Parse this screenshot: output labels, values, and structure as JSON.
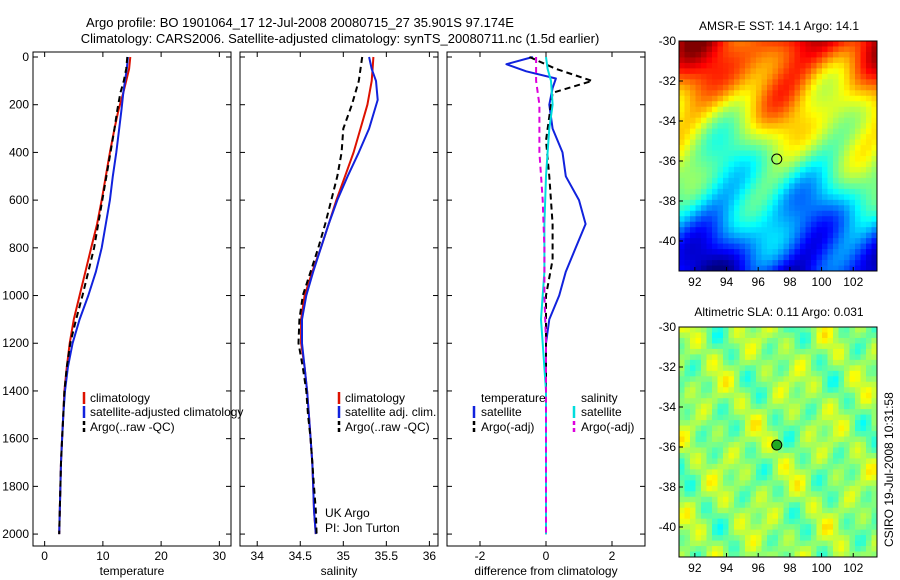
{
  "header": {
    "title_line1": "Argo profile: BO 1901064_17 12-Jul-2008 20080715_27 35.901S 97.174E",
    "title_line2": "Climatology: CARS2006. Satellite-adjusted climatology: synTS_20080711.nc (1.5d earlier)"
  },
  "credits": {
    "line1": "UK Argo",
    "line2": "PI: Jon Turton",
    "side": "CSIRO 19-Jul-2008 10:31:58"
  },
  "colors": {
    "climatology": "#dd1100",
    "satellite": "#1122dd",
    "argo": "#000000",
    "salinity_satellite": "#00dddd",
    "salinity_argo": "#dd00dd"
  },
  "chart_data": [
    {
      "type": "line",
      "id": "temperature",
      "xlabel": "temperature",
      "ylabel": "",
      "xlim": [
        -2,
        32
      ],
      "ylim": [
        0,
        2050
      ],
      "y_inverted": true,
      "xticks": [
        0,
        10,
        20,
        30
      ],
      "yticks": [
        0,
        200,
        400,
        600,
        800,
        1000,
        1200,
        1400,
        1600,
        1800,
        2000
      ],
      "legend": {
        "position": "bottom-right",
        "entries": [
          "climatology",
          "satellite-adjusted climatology",
          "Argo(..raw -QC)"
        ]
      },
      "series": [
        {
          "name": "climatology",
          "color": "#dd1100",
          "dash": false,
          "points": [
            [
              14.7,
              0
            ],
            [
              14.5,
              50
            ],
            [
              14.0,
              100
            ],
            [
              13.5,
              150
            ],
            [
              12.7,
              220
            ],
            [
              12.0,
              300
            ],
            [
              11.2,
              400
            ],
            [
              10.5,
              500
            ],
            [
              9.8,
              600
            ],
            [
              9.0,
              700
            ],
            [
              8.0,
              800
            ],
            [
              7.0,
              900
            ],
            [
              6.0,
              1000
            ],
            [
              5.0,
              1100
            ],
            [
              4.3,
              1200
            ],
            [
              3.8,
              1300
            ],
            [
              3.4,
              1400
            ],
            [
              3.2,
              1500
            ],
            [
              3.0,
              1600
            ],
            [
              2.8,
              1700
            ],
            [
              2.7,
              1800
            ],
            [
              2.6,
              1900
            ],
            [
              2.5,
              2000
            ]
          ]
        },
        {
          "name": "satellite-adjusted climatology",
          "color": "#1122dd",
          "dash": false,
          "points": [
            [
              14.3,
              0
            ],
            [
              14.1,
              50
            ],
            [
              13.8,
              100
            ],
            [
              13.5,
              150
            ],
            [
              13.2,
              220
            ],
            [
              12.8,
              300
            ],
            [
              12.3,
              400
            ],
            [
              11.7,
              500
            ],
            [
              11.2,
              600
            ],
            [
              10.5,
              700
            ],
            [
              9.8,
              800
            ],
            [
              8.8,
              900
            ],
            [
              7.5,
              1000
            ],
            [
              6.0,
              1100
            ],
            [
              4.8,
              1200
            ],
            [
              4.0,
              1300
            ],
            [
              3.5,
              1400
            ],
            [
              3.2,
              1500
            ],
            [
              3.0,
              1600
            ],
            [
              2.8,
              1700
            ],
            [
              2.7,
              1800
            ],
            [
              2.6,
              1900
            ],
            [
              2.5,
              2000
            ]
          ]
        },
        {
          "name": "Argo(..raw -QC)",
          "color": "#000000",
          "dash": true,
          "points": [
            [
              14.2,
              0
            ],
            [
              14.0,
              50
            ],
            [
              13.6,
              100
            ],
            [
              13.0,
              150
            ],
            [
              12.5,
              220
            ],
            [
              12.0,
              300
            ],
            [
              11.3,
              400
            ],
            [
              10.6,
              500
            ],
            [
              9.9,
              600
            ],
            [
              9.2,
              700
            ],
            [
              8.5,
              800
            ],
            [
              7.5,
              900
            ],
            [
              6.5,
              1000
            ],
            [
              5.4,
              1100
            ],
            [
              4.4,
              1200
            ],
            [
              3.8,
              1300
            ],
            [
              3.4,
              1400
            ],
            [
              3.2,
              1500
            ],
            [
              3.0,
              1600
            ],
            [
              2.8,
              1700
            ],
            [
              2.7,
              1800
            ],
            [
              2.6,
              1900
            ],
            [
              2.5,
              2000
            ]
          ]
        }
      ]
    },
    {
      "type": "line",
      "id": "salinity",
      "xlabel": "salinity",
      "ylabel": "",
      "xlim": [
        33.8,
        36.1
      ],
      "ylim": [
        0,
        2050
      ],
      "y_inverted": true,
      "xticks": [
        34,
        34.5,
        35,
        35.5,
        36
      ],
      "yticks": [
        0,
        200,
        400,
        600,
        800,
        1000,
        1200,
        1400,
        1600,
        1800,
        2000
      ],
      "legend": {
        "position": "bottom-right",
        "entries": [
          "climatology",
          "satellite adj. clim.",
          "Argo(..raw -QC)"
        ]
      },
      "series": [
        {
          "name": "climatology",
          "color": "#dd1100",
          "dash": false,
          "points": [
            [
              35.35,
              0
            ],
            [
              35.34,
              50
            ],
            [
              35.33,
              100
            ],
            [
              35.28,
              200
            ],
            [
              35.2,
              300
            ],
            [
              35.12,
              400
            ],
            [
              35.02,
              500
            ],
            [
              34.92,
              600
            ],
            [
              34.83,
              700
            ],
            [
              34.74,
              800
            ],
            [
              34.64,
              900
            ],
            [
              34.55,
              1000
            ],
            [
              34.51,
              1100
            ],
            [
              34.51,
              1200
            ],
            [
              34.55,
              1300
            ],
            [
              34.58,
              1400
            ],
            [
              34.6,
              1500
            ],
            [
              34.62,
              1600
            ],
            [
              34.64,
              1700
            ],
            [
              34.65,
              1800
            ],
            [
              34.66,
              1900
            ],
            [
              34.68,
              2000
            ]
          ]
        },
        {
          "name": "satellite adj. clim.",
          "color": "#1122dd",
          "dash": false,
          "points": [
            [
              35.3,
              0
            ],
            [
              35.33,
              50
            ],
            [
              35.38,
              100
            ],
            [
              35.4,
              180
            ],
            [
              35.3,
              300
            ],
            [
              35.18,
              400
            ],
            [
              35.05,
              500
            ],
            [
              34.93,
              600
            ],
            [
              34.83,
              700
            ],
            [
              34.74,
              800
            ],
            [
              34.65,
              900
            ],
            [
              34.57,
              1000
            ],
            [
              34.52,
              1100
            ],
            [
              34.52,
              1200
            ],
            [
              34.55,
              1300
            ],
            [
              34.58,
              1400
            ],
            [
              34.6,
              1500
            ],
            [
              34.62,
              1600
            ],
            [
              34.64,
              1700
            ],
            [
              34.65,
              1800
            ],
            [
              34.66,
              1900
            ],
            [
              34.68,
              2000
            ]
          ]
        },
        {
          "name": "Argo(..raw -QC)",
          "color": "#000000",
          "dash": true,
          "points": [
            [
              35.22,
              0
            ],
            [
              35.2,
              50
            ],
            [
              35.18,
              100
            ],
            [
              35.1,
              200
            ],
            [
              35.0,
              300
            ],
            [
              34.98,
              400
            ],
            [
              34.93,
              500
            ],
            [
              34.86,
              600
            ],
            [
              34.79,
              700
            ],
            [
              34.71,
              800
            ],
            [
              34.62,
              900
            ],
            [
              34.53,
              1000
            ],
            [
              34.49,
              1100
            ],
            [
              34.48,
              1200
            ],
            [
              34.53,
              1300
            ],
            [
              34.57,
              1400
            ],
            [
              34.59,
              1500
            ],
            [
              34.62,
              1600
            ],
            [
              34.64,
              1700
            ],
            [
              34.66,
              1800
            ],
            [
              34.68,
              1900
            ],
            [
              34.69,
              2000
            ]
          ]
        }
      ]
    },
    {
      "type": "line",
      "id": "difference",
      "xlabel": "difference from climatology",
      "ylabel": "",
      "xlim": [
        -3,
        3
      ],
      "ylim": [
        0,
        2050
      ],
      "y_inverted": true,
      "xticks": [
        -2,
        0,
        2
      ],
      "yticks": [
        0,
        200,
        400,
        600,
        800,
        1000,
        1200,
        1400,
        1600,
        1800,
        2000
      ],
      "legend_groups": [
        {
          "title": "temperature",
          "entries": [
            "satellite",
            "Argo(-adj)"
          ]
        },
        {
          "title": "salinity",
          "entries": [
            "satellite",
            "Argo(-adj)"
          ]
        }
      ],
      "series": [
        {
          "name": "temperature satellite",
          "color": "#1122dd",
          "dash": false,
          "points": [
            [
              -0.4,
              0
            ],
            [
              -1.2,
              30
            ],
            [
              -0.6,
              60
            ],
            [
              0.3,
              90
            ],
            [
              0.2,
              130
            ],
            [
              0.1,
              200
            ],
            [
              0.2,
              300
            ],
            [
              0.5,
              400
            ],
            [
              0.6,
              500
            ],
            [
              1.0,
              600
            ],
            [
              1.2,
              700
            ],
            [
              0.9,
              800
            ],
            [
              0.6,
              900
            ],
            [
              0.4,
              1000
            ],
            [
              0.1,
              1100
            ],
            [
              0.0,
              1200
            ],
            [
              0.0,
              1300
            ],
            [
              0.0,
              1400
            ],
            [
              0.0,
              1600
            ],
            [
              0.0,
              1800
            ],
            [
              0.0,
              2000
            ]
          ]
        },
        {
          "name": "temperature Argo(-adj)",
          "color": "#000000",
          "dash": true,
          "points": [
            [
              -0.5,
              0
            ],
            [
              0.3,
              50
            ],
            [
              1.4,
              100
            ],
            [
              0.2,
              150
            ],
            [
              0.1,
              250
            ],
            [
              0.0,
              350
            ],
            [
              0.1,
              500
            ],
            [
              0.2,
              700
            ],
            [
              0.2,
              850
            ],
            [
              0.0,
              1000
            ],
            [
              0.0,
              1100
            ],
            [
              0.0,
              1300
            ],
            [
              0.0,
              1500
            ],
            [
              0.0,
              1700
            ],
            [
              0.0,
              2000
            ]
          ]
        },
        {
          "name": "salinity satellite",
          "color": "#00dddd",
          "dash": false,
          "points": [
            [
              0.0,
              0
            ],
            [
              0.05,
              50
            ],
            [
              0.15,
              100
            ],
            [
              0.2,
              200
            ],
            [
              0.1,
              300
            ],
            [
              0.05,
              400
            ],
            [
              0.0,
              500
            ],
            [
              -0.05,
              700
            ],
            [
              -0.05,
              900
            ],
            [
              -0.1,
              1000
            ],
            [
              -0.15,
              1100
            ],
            [
              -0.1,
              1200
            ],
            [
              0.0,
              1400
            ],
            [
              0.0,
              1600
            ],
            [
              0.0,
              1800
            ],
            [
              0.0,
              2000
            ]
          ]
        },
        {
          "name": "salinity Argo(-adj)",
          "color": "#dd00dd",
          "dash": true,
          "points": [
            [
              -0.3,
              0
            ],
            [
              -0.3,
              100
            ],
            [
              -0.2,
              200
            ],
            [
              -0.2,
              300
            ],
            [
              -0.2,
              400
            ],
            [
              -0.1,
              600
            ],
            [
              -0.05,
              800
            ],
            [
              -0.05,
              1000
            ],
            [
              0.0,
              1200
            ],
            [
              0.0,
              1400
            ],
            [
              0.0,
              1600
            ],
            [
              0.0,
              2000
            ]
          ]
        }
      ]
    },
    {
      "type": "heatmap",
      "id": "sst_map",
      "title": "AMSR-E SST: 14.1 Argo: 14.1",
      "xlim": [
        91,
        103.5
      ],
      "ylim": [
        -41.5,
        -30
      ],
      "xticks": [
        92,
        94,
        96,
        98,
        100,
        102
      ],
      "yticks": [
        -30,
        -32,
        -34,
        -36,
        -38,
        -40
      ],
      "marker": {
        "x": 97.174,
        "y": -35.901,
        "fill": "none"
      }
    },
    {
      "type": "heatmap",
      "id": "sla_map",
      "title": "Altimetric SLA: 0.11 Argo: 0.031",
      "xlim": [
        91,
        103.5
      ],
      "ylim": [
        -41.5,
        -30
      ],
      "xticks": [
        92,
        94,
        96,
        98,
        100,
        102
      ],
      "yticks": [
        -30,
        -32,
        -34,
        -36,
        -38,
        -40
      ],
      "marker": {
        "x": 97.174,
        "y": -35.901,
        "fill": "#22aa22"
      }
    }
  ]
}
